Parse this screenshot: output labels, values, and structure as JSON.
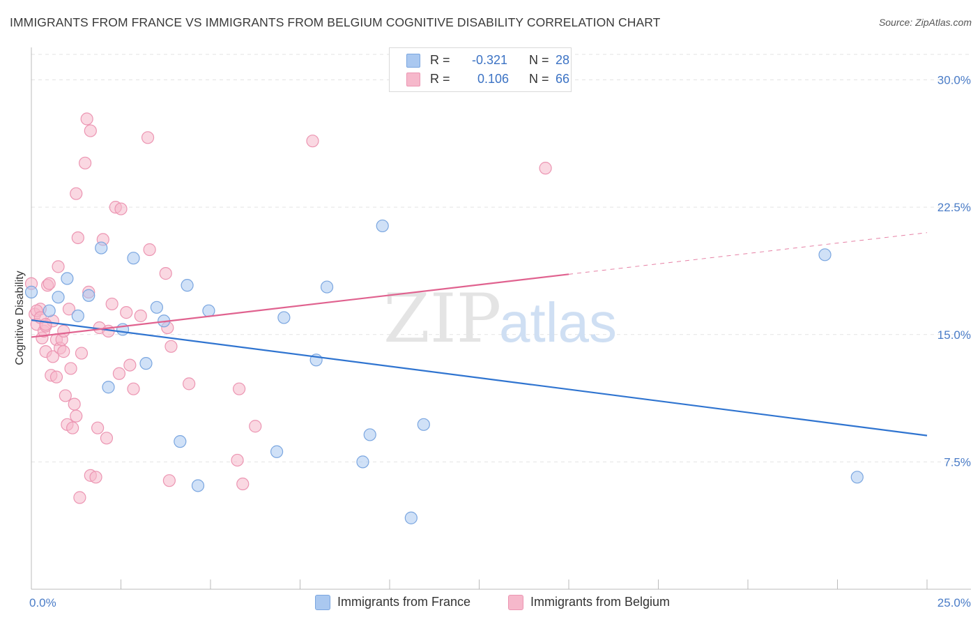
{
  "header": {
    "title": "IMMIGRANTS FROM FRANCE VS IMMIGRANTS FROM BELGIUM COGNITIVE DISABILITY CORRELATION CHART",
    "source": "Source: ZipAtlas.com"
  },
  "watermark": {
    "zip": "ZIP",
    "atlas": "atlas"
  },
  "legend_top": {
    "rows": [
      {
        "key": "R =",
        "r": "-0.321",
        "nkey": "N =",
        "n": "28"
      },
      {
        "key": "R =",
        "r": "0.106",
        "nkey": "N =",
        "n": "66"
      }
    ]
  },
  "legend_bottom": {
    "items": [
      "Immigrants from France",
      "Immigrants from Belgium"
    ]
  },
  "colors": {
    "france_fill": "#aac8f0",
    "france_stroke": "#7aa6e0",
    "france_line": "#2f74d0",
    "belgium_fill": "#f6b8cb",
    "belgium_stroke": "#ec95b2",
    "belgium_line": "#e0628f",
    "tick_label": "#4a7cc7",
    "grid": "#e3e3e3"
  },
  "chart_data": {
    "type": "scatter",
    "title": "IMMIGRANTS FROM FRANCE VS IMMIGRANTS FROM BELGIUM COGNITIVE DISABILITY CORRELATION CHART",
    "xlabel": "",
    "ylabel": "Cognitive Disability",
    "xlim": [
      0,
      25
    ],
    "ylim": [
      0,
      31.5
    ],
    "x_tick_labels": [
      "0.0%",
      "25.0%"
    ],
    "y_ticks": [
      7.5,
      15.0,
      22.5,
      30.0
    ],
    "y_tick_labels": [
      "7.5%",
      "15.0%",
      "22.5%",
      "30.0%"
    ],
    "grid": true,
    "legend_position": "bottom",
    "series": [
      {
        "name": "Immigrants from France",
        "R": -0.321,
        "N": 28,
        "points": [
          [
            0.0,
            17.5
          ],
          [
            0.5,
            16.4
          ],
          [
            0.75,
            17.2
          ],
          [
            1.0,
            18.3
          ],
          [
            1.3,
            16.1
          ],
          [
            1.6,
            17.3
          ],
          [
            1.95,
            20.1
          ],
          [
            2.15,
            11.9
          ],
          [
            2.55,
            15.3
          ],
          [
            2.85,
            19.5
          ],
          [
            3.2,
            13.3
          ],
          [
            3.5,
            16.6
          ],
          [
            3.7,
            15.8
          ],
          [
            4.15,
            8.7
          ],
          [
            4.35,
            17.9
          ],
          [
            4.65,
            6.1
          ],
          [
            4.95,
            16.4
          ],
          [
            6.85,
            8.1
          ],
          [
            7.05,
            16.0
          ],
          [
            7.95,
            13.5
          ],
          [
            8.25,
            17.8
          ],
          [
            9.25,
            7.5
          ],
          [
            9.45,
            9.1
          ],
          [
            9.8,
            21.4
          ],
          [
            10.6,
            4.2
          ],
          [
            10.95,
            9.7
          ],
          [
            22.15,
            19.7
          ],
          [
            23.05,
            6.6
          ]
        ],
        "trend": {
          "x": [
            0,
            25
          ],
          "y": [
            15.85,
            9.05
          ]
        }
      },
      {
        "name": "Immigrants from Belgium",
        "R": 0.106,
        "N": 66,
        "points": [
          [
            0.0,
            18.0
          ],
          [
            0.1,
            16.2
          ],
          [
            0.15,
            15.6
          ],
          [
            0.25,
            16.5
          ],
          [
            0.3,
            14.8
          ],
          [
            0.35,
            15.2
          ],
          [
            0.4,
            15.5
          ],
          [
            0.4,
            14.0
          ],
          [
            0.45,
            17.9
          ],
          [
            0.5,
            18.0
          ],
          [
            0.55,
            12.6
          ],
          [
            0.6,
            13.7
          ],
          [
            0.6,
            15.8
          ],
          [
            0.7,
            14.7
          ],
          [
            0.7,
            12.5
          ],
          [
            0.75,
            19.0
          ],
          [
            0.8,
            14.2
          ],
          [
            0.85,
            14.7
          ],
          [
            0.9,
            15.2
          ],
          [
            0.9,
            14.0
          ],
          [
            0.95,
            11.4
          ],
          [
            1.0,
            9.7
          ],
          [
            1.05,
            16.5
          ],
          [
            1.1,
            13.0
          ],
          [
            1.15,
            9.5
          ],
          [
            1.2,
            10.9
          ],
          [
            1.25,
            10.2
          ],
          [
            1.25,
            23.3
          ],
          [
            1.3,
            20.7
          ],
          [
            1.35,
            5.4
          ],
          [
            1.4,
            13.9
          ],
          [
            1.5,
            25.1
          ],
          [
            1.55,
            27.7
          ],
          [
            1.6,
            17.5
          ],
          [
            1.65,
            6.7
          ],
          [
            1.65,
            27.0
          ],
          [
            1.8,
            6.6
          ],
          [
            1.85,
            9.5
          ],
          [
            1.9,
            15.4
          ],
          [
            2.0,
            20.6
          ],
          [
            2.1,
            8.9
          ],
          [
            2.15,
            15.2
          ],
          [
            2.25,
            16.8
          ],
          [
            2.35,
            22.5
          ],
          [
            2.45,
            12.7
          ],
          [
            2.5,
            22.4
          ],
          [
            2.65,
            16.3
          ],
          [
            2.75,
            13.2
          ],
          [
            2.85,
            11.8
          ],
          [
            3.05,
            16.1
          ],
          [
            3.25,
            26.6
          ],
          [
            3.3,
            20.0
          ],
          [
            3.75,
            18.6
          ],
          [
            3.8,
            15.4
          ],
          [
            3.85,
            6.4
          ],
          [
            3.9,
            14.3
          ],
          [
            4.4,
            12.1
          ],
          [
            5.75,
            7.6
          ],
          [
            5.8,
            11.8
          ],
          [
            5.9,
            6.2
          ],
          [
            6.25,
            9.6
          ],
          [
            7.85,
            26.4
          ],
          [
            14.35,
            24.8
          ],
          [
            0.15,
            16.4
          ],
          [
            0.25,
            16.0
          ],
          [
            0.4,
            15.6
          ]
        ],
        "trend": {
          "x": [
            0,
            15
          ],
          "y": [
            14.85,
            18.55
          ]
        },
        "trend_extension": {
          "x": [
            15,
            25
          ],
          "y": [
            18.55,
            21.0
          ]
        }
      }
    ]
  }
}
